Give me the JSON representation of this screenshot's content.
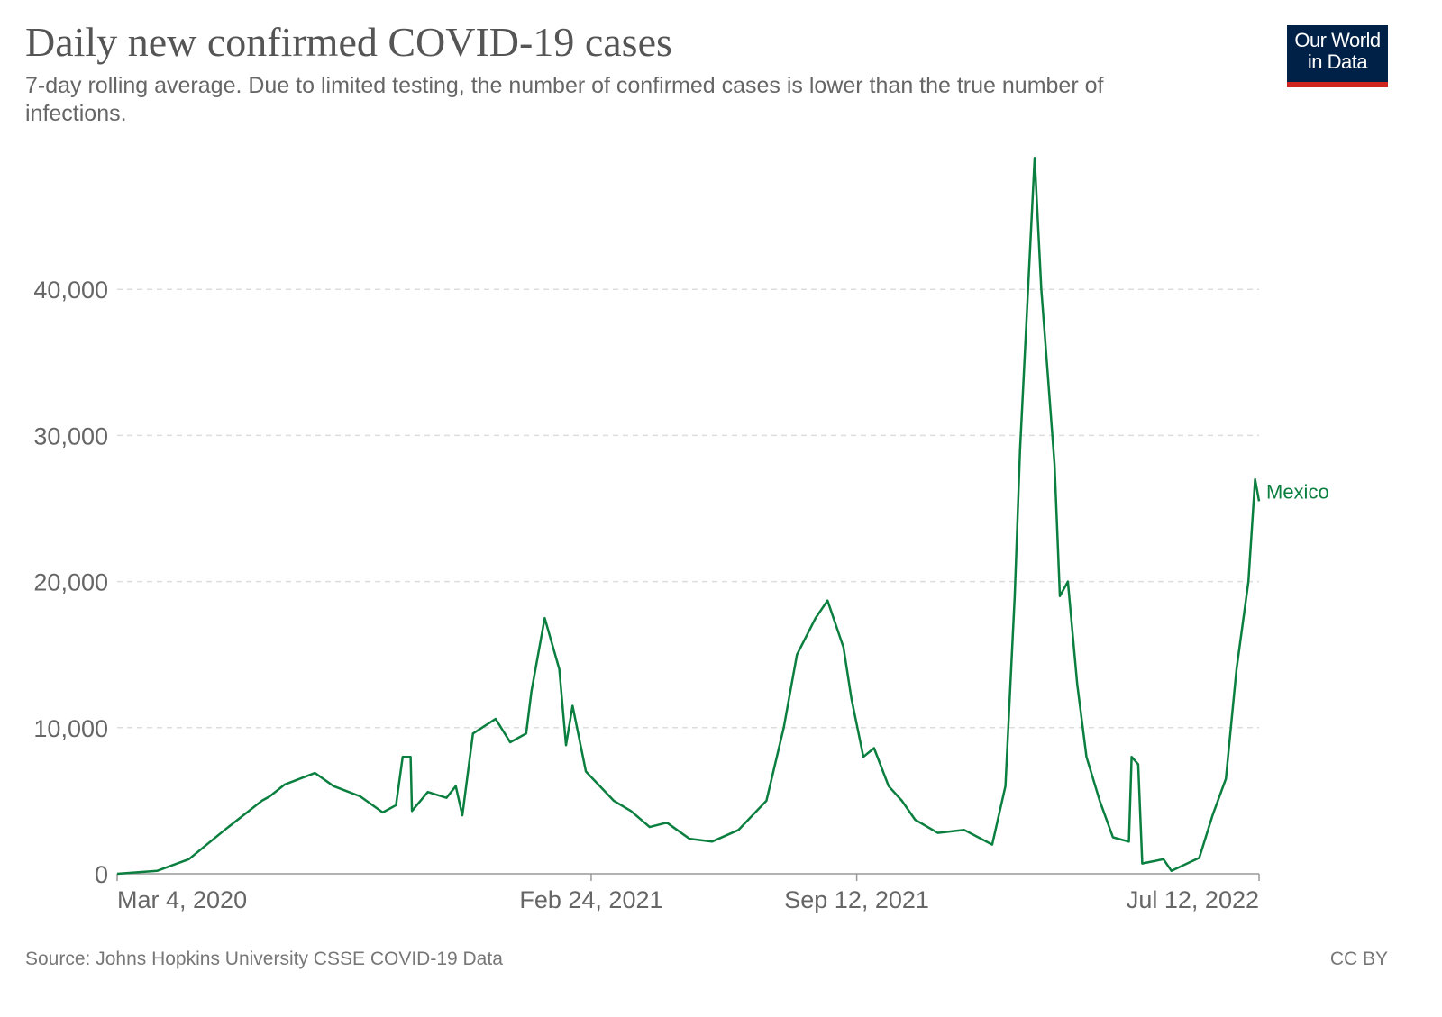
{
  "chart_data": {
    "type": "line",
    "title": "Daily new confirmed COVID-19 cases",
    "subtitle": "7-day rolling average. Due to limited testing, the number of confirmed cases is lower than the true number of infections.",
    "source": "Source: Johns Hopkins University CSSE COVID-19 Data",
    "license": "CC BY",
    "logo": [
      "Our World",
      "in Data"
    ],
    "x": [
      "2020-03-04",
      "2020-04-03",
      "2020-04-27",
      "2020-05-24",
      "2020-06-21",
      "2020-06-27",
      "2020-07-08",
      "2020-07-31",
      "2020-08-14",
      "2020-09-03",
      "2020-09-20",
      "2020-09-30",
      "2020-10-05",
      "2020-10-11",
      "2020-10-12",
      "2020-10-24",
      "2020-11-07",
      "2020-11-14",
      "2020-11-19",
      "2020-11-27",
      "2020-12-14",
      "2020-12-25",
      "2021-01-06",
      "2021-01-10",
      "2021-01-20",
      "2021-01-31",
      "2021-02-05",
      "2021-02-10",
      "2021-02-20",
      "2021-03-13",
      "2021-03-26",
      "2021-04-09",
      "2021-04-22",
      "2021-05-09",
      "2021-05-26",
      "2021-06-15",
      "2021-07-06",
      "2021-07-19",
      "2021-07-29",
      "2021-08-12",
      "2021-08-21",
      "2021-09-02",
      "2021-09-08",
      "2021-09-17",
      "2021-09-25",
      "2021-10-06",
      "2021-10-16",
      "2021-10-26",
      "2021-11-12",
      "2021-12-02",
      "2021-12-23",
      "2022-01-02",
      "2022-01-09",
      "2022-01-13",
      "2022-01-19",
      "2022-01-24",
      "2022-01-29",
      "2022-02-03",
      "2022-02-08",
      "2022-02-12",
      "2022-02-18",
      "2022-02-25",
      "2022-03-04",
      "2022-03-14",
      "2022-03-24",
      "2022-04-05",
      "2022-04-07",
      "2022-04-12",
      "2022-04-15",
      "2022-05-01",
      "2022-05-07",
      "2022-05-28",
      "2022-06-07",
      "2022-06-17",
      "2022-06-25",
      "2022-07-04",
      "2022-07-09",
      "2022-07-12"
    ],
    "series": [
      {
        "name": "Mexico",
        "color": "#0b7f3f",
        "values": [
          0,
          200,
          1000,
          3000,
          5000,
          5300,
          6100,
          6900,
          6000,
          5300,
          4200,
          4700,
          8000,
          8000,
          4300,
          5600,
          5200,
          6000,
          4000,
          9600,
          10600,
          9000,
          9600,
          12500,
          17500,
          14000,
          8800,
          11500,
          7000,
          5000,
          4300,
          3200,
          3500,
          2400,
          2200,
          3000,
          5000,
          10000,
          15000,
          17500,
          18700,
          15500,
          12000,
          8000,
          8600,
          6000,
          5000,
          3700,
          2800,
          3000,
          2000,
          6000,
          19000,
          29000,
          40000,
          49000,
          40000,
          34000,
          28000,
          19000,
          20000,
          13000,
          8000,
          5000,
          2500,
          2200,
          8000,
          7500,
          700,
          1000,
          200,
          1100,
          4000,
          6500,
          14000,
          20000,
          27000,
          25500
        ]
      }
    ],
    "xlim": [
      "2020-03-04",
      "2022-07-12"
    ],
    "xticks": [
      {
        "value": "2020-03-04",
        "label": "Mar 4, 2020"
      },
      {
        "value": "2021-02-24",
        "label": "Feb 24, 2021"
      },
      {
        "value": "2021-09-12",
        "label": "Sep 12, 2021"
      },
      {
        "value": "2022-07-12",
        "label": "Jul 12, 2022"
      }
    ],
    "ylim": [
      0,
      50000
    ],
    "yticks": [
      {
        "value": 0,
        "label": "0"
      },
      {
        "value": 10000,
        "label": "10,000"
      },
      {
        "value": 20000,
        "label": "20,000"
      },
      {
        "value": 30000,
        "label": "30,000"
      },
      {
        "value": 40000,
        "label": "40,000"
      }
    ],
    "grid": true
  }
}
